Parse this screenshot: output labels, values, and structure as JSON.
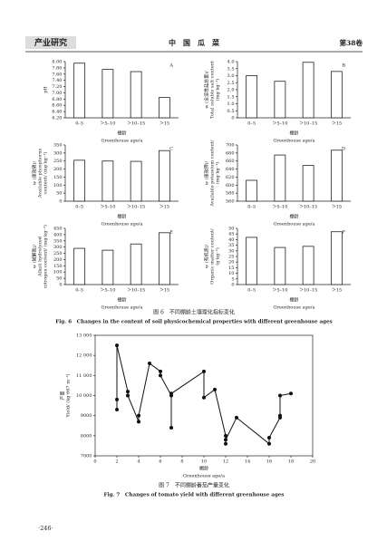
{
  "header": {
    "section": "产业研究",
    "journal": "中　国　瓜　菜",
    "volume": "第38卷"
  },
  "figure6_caption": {
    "zh": "图 6　不同棚龄土壤理化指标变化",
    "en": "Fig. 6　Changes in the content of soil physicochemical properties with different greenhouse ages"
  },
  "figure7_caption": {
    "zh": "图 7　不同棚龄番茄产量变化",
    "en": "Fig. 7　Changes of tomato yield with different greenhouse ages"
  },
  "page_number": "·246·",
  "chart_data": [
    {
      "type": "bar",
      "panel_label": "A",
      "y_label": [
        "pH"
      ],
      "x_label": [
        "棚龄",
        "Greenhouse age/a"
      ],
      "categories": [
        "0–5",
        "＞5–10",
        "＞10–15",
        "＞15"
      ],
      "values": [
        7.95,
        7.75,
        7.68,
        6.85
      ],
      "ylim": [
        6.2,
        8.0
      ],
      "yticks": [
        {
          "value": 6.2,
          "label": "6.20"
        },
        {
          "value": 6.4,
          "label": "6.40"
        },
        {
          "value": 6.6,
          "label": "6.60"
        },
        {
          "value": 6.8,
          "label": "6.80"
        },
        {
          "value": 7.0,
          "label": "7.00"
        },
        {
          "value": 7.2,
          "label": "7.20"
        },
        {
          "value": 7.4,
          "label": "7.40"
        },
        {
          "value": 7.6,
          "label": "7.60"
        },
        {
          "value": 7.8,
          "label": "7.80"
        },
        {
          "value": 8.0,
          "label": "8.00"
        }
      ]
    },
    {
      "type": "bar",
      "panel_label": "B",
      "y_label": [
        "w (全溶性盐总量)/",
        "Total soluble salt content",
        "(mg·kg⁻¹)"
      ],
      "x_label": [
        "棚龄",
        "Greenhouse age/a"
      ],
      "categories": [
        "0–5",
        "＞5–10",
        "＞10–15",
        "＞15"
      ],
      "values": [
        3.0,
        2.6,
        3.95,
        3.3
      ],
      "ylim": [
        0,
        4.0
      ],
      "yticks": [
        0,
        0.5,
        {
          "value": 1,
          "label": "1.0"
        },
        1.5,
        {
          "value": 2,
          "label": "2.0"
        },
        2.5,
        {
          "value": 3,
          "label": "3.0"
        },
        3.5,
        {
          "value": 4,
          "label": "4.0"
        }
      ]
    },
    {
      "type": "bar",
      "panel_label": "C",
      "y_label": [
        "w (速效磷)/",
        "Available phosphorus",
        "content/ (mg·kg⁻¹)"
      ],
      "x_label": [
        "棚龄",
        "Greenhouse age/a"
      ],
      "categories": [
        "0–5",
        "＞5–10",
        "＞10–15",
        "＞15"
      ],
      "values": [
        255,
        250,
        248,
        315
      ],
      "ylim": [
        0,
        350
      ],
      "yticks": [
        0,
        50,
        100,
        150,
        200,
        250,
        300,
        350
      ]
    },
    {
      "type": "bar",
      "panel_label": "D",
      "y_label": [
        "w (速效钾)/",
        "Available potassium content/",
        "(mg·kg⁻¹)"
      ],
      "x_label": [
        "棚龄",
        "Greenhouse age/a"
      ],
      "categories": [
        "0–5",
        "＞5–10",
        "＞10–15",
        "＞15"
      ],
      "values": [
        612,
        675,
        649,
        687
      ],
      "ylim": [
        560,
        700
      ],
      "yticks": [
        560,
        580,
        600,
        620,
        640,
        660,
        680,
        700
      ]
    },
    {
      "type": "bar",
      "panel_label": "E",
      "y_label": [
        "w (碱解氮)/",
        "Alkali hydrolyzed",
        "nitrogen content/ (mg·kg⁻¹)"
      ],
      "x_label": [
        "棚龄",
        "Greenhouse age/a"
      ],
      "categories": [
        "0–5",
        "＞5–10",
        "＞10–15",
        "＞15"
      ],
      "values": [
        290,
        275,
        325,
        415
      ],
      "ylim": [
        0,
        450
      ],
      "yticks": [
        0,
        50,
        100,
        150,
        200,
        250,
        300,
        350,
        400,
        450
      ]
    },
    {
      "type": "bar",
      "panel_label": "F",
      "y_label": [
        "w (有机质)/",
        "Organic matter content/",
        "(g·kg⁻¹)"
      ],
      "x_label": [
        "棚龄",
        "Greenhouse age/a"
      ],
      "categories": [
        "0–5",
        "＞5–10",
        "＞10–15",
        "＞15"
      ],
      "values": [
        42,
        33,
        34,
        47
      ],
      "ylim": [
        0,
        50
      ],
      "yticks": [
        0,
        5,
        10,
        15,
        20,
        25,
        30,
        35,
        40,
        45,
        50
      ]
    },
    {
      "type": "line",
      "y_label": [
        "产量",
        "Yield/ (kg·667 m⁻²)"
      ],
      "x_label": [
        "棚龄",
        "Greenhouse age/a"
      ],
      "x": [
        2,
        2,
        2,
        3,
        3,
        4,
        4,
        5,
        6,
        6,
        7,
        7,
        7,
        10,
        10,
        11,
        12,
        12,
        12,
        13,
        16,
        16,
        17,
        17,
        17,
        18
      ],
      "values": [
        9800,
        9300,
        12500,
        10200,
        10000,
        8700,
        9000,
        11600,
        11200,
        11000,
        10000,
        8400,
        10100,
        11200,
        9900,
        10300,
        8000,
        7600,
        7800,
        8900,
        7600,
        7900,
        8900,
        9000,
        10000,
        10100
      ],
      "xlim": [
        0,
        20
      ],
      "xticks": [
        0,
        2,
        4,
        6,
        8,
        10,
        12,
        14,
        16,
        18,
        20
      ],
      "ylim": [
        7000,
        13000
      ],
      "yticks": [
        7000,
        8000,
        9000,
        {
          "value": 10000,
          "label": "10 000"
        },
        {
          "value": 11000,
          "label": "11 000"
        },
        {
          "value": 12000,
          "label": "12 000"
        },
        {
          "value": 13000,
          "label": "13 000"
        }
      ]
    }
  ]
}
